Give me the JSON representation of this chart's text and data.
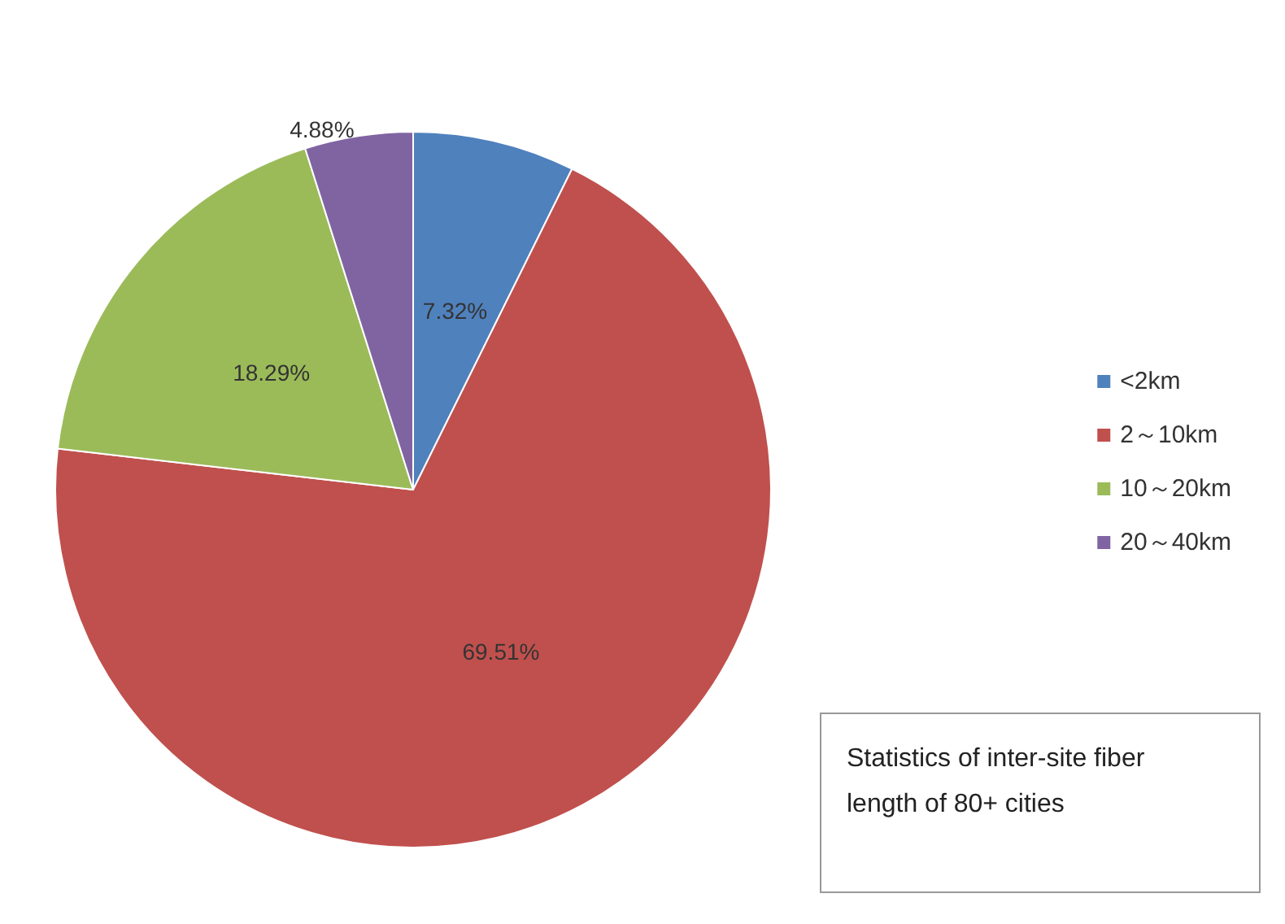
{
  "chart_data": {
    "type": "pie",
    "categories": [
      "<2km",
      "2～10km",
      "10～20km",
      "20～40km"
    ],
    "values": [
      7.32,
      69.51,
      18.29,
      4.88
    ],
    "colors": [
      "#4f81bd",
      "#c0504d",
      "#9bbb59",
      "#8064a2"
    ],
    "value_labels": [
      "7.32%",
      "69.51%",
      "18.29%",
      "4.88%"
    ],
    "legend": "right",
    "annotations": [
      "Statistics of inter-site fiber length of 80+ cities"
    ]
  }
}
